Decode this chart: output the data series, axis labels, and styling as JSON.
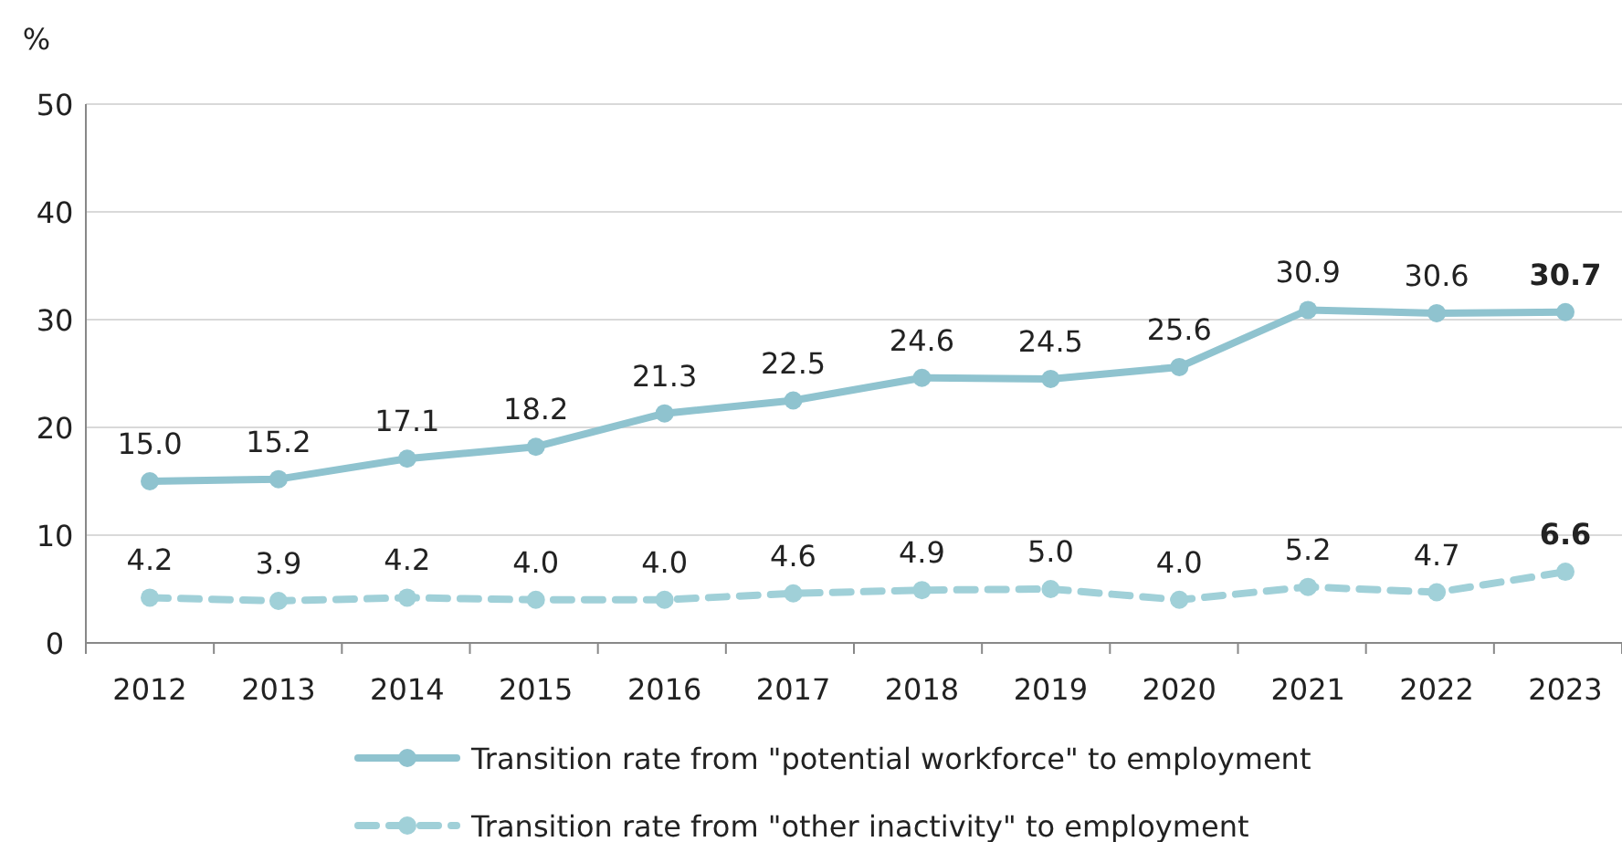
{
  "chart_data": {
    "type": "line",
    "ylabel": "%",
    "categories": [
      "2012",
      "2013",
      "2014",
      "2015",
      "2016",
      "2017",
      "2018",
      "2019",
      "2020",
      "2021",
      "2022",
      "2023"
    ],
    "series": [
      {
        "name": "Transition rate from \"potential workforce\" to employment",
        "color": "#8fc3cf",
        "line_style": "solid",
        "values": [
          15.0,
          15.2,
          17.1,
          18.2,
          21.3,
          22.5,
          24.6,
          24.5,
          25.6,
          30.9,
          30.6,
          30.7
        ],
        "value_labels": [
          "15.0",
          "15.2",
          "17.1",
          "18.2",
          "21.3",
          "22.5",
          "24.6",
          "24.5",
          "25.6",
          "30.9",
          "30.6",
          "30.7"
        ]
      },
      {
        "name": "Transition rate from \"other inactivity\" to employment",
        "color": "#a0d0d8",
        "line_style": "dashed",
        "values": [
          4.2,
          3.9,
          4.2,
          4.0,
          4.0,
          4.6,
          4.9,
          5.0,
          4.0,
          5.2,
          4.7,
          6.6
        ],
        "value_labels": [
          "4.2",
          "3.9",
          "4.2",
          "4.0",
          "4.0",
          "4.6",
          "4.9",
          "5.0",
          "4.0",
          "5.2",
          "4.7",
          "6.6"
        ]
      }
    ],
    "ylim": [
      0,
      50
    ],
    "yticks": [
      0,
      10,
      20,
      30,
      40,
      50
    ],
    "grid": "y",
    "legend": "bottom",
    "marker": "circle"
  }
}
